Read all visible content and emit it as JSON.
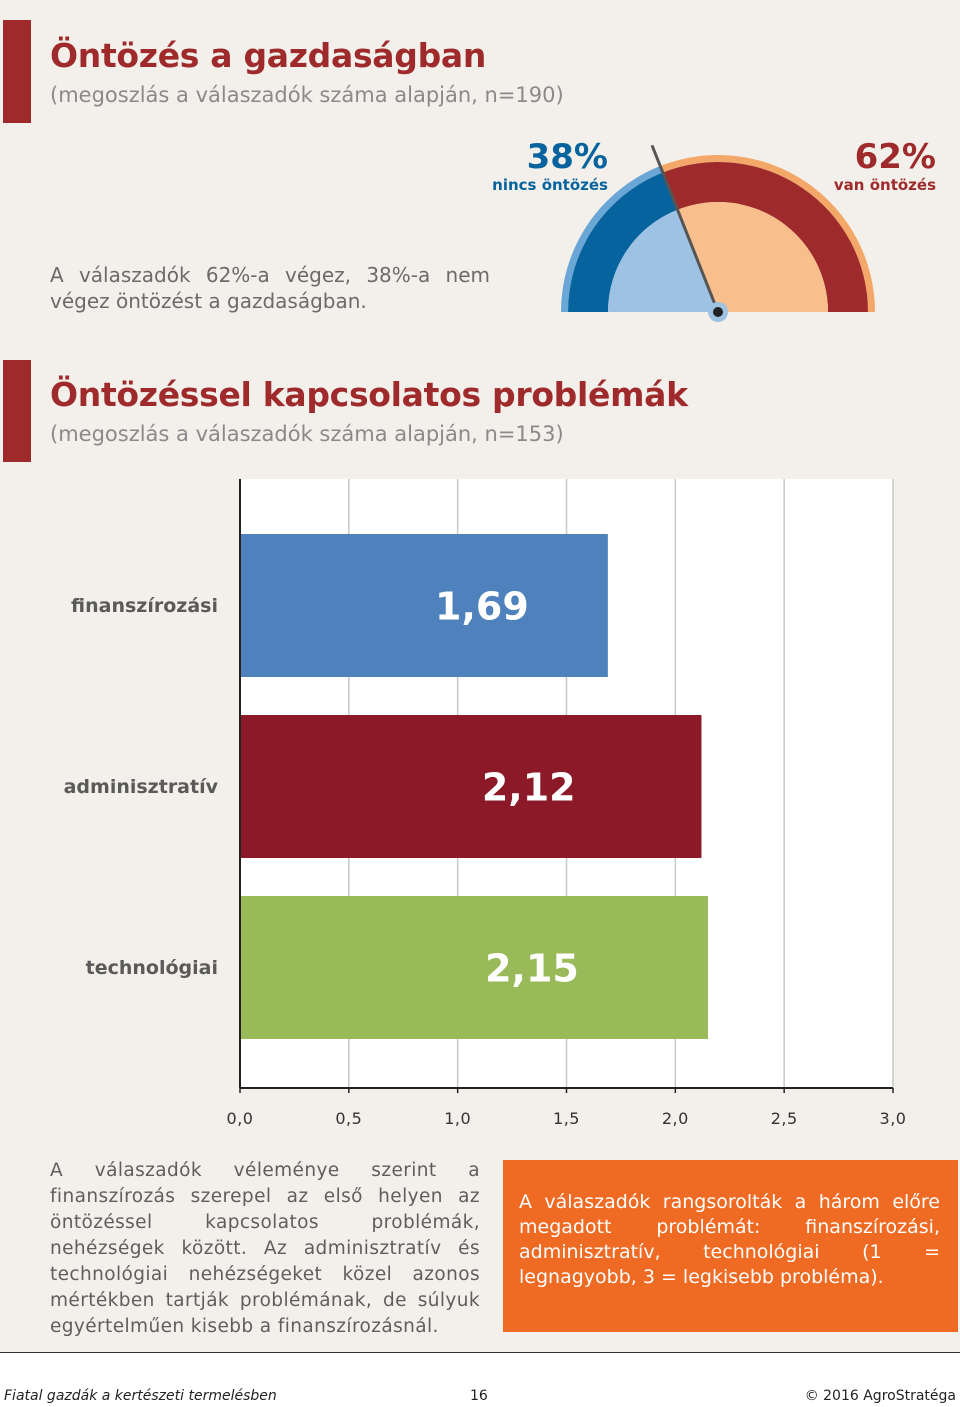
{
  "section1": {
    "title": "Öntözés a gazdaságban",
    "subtitle": "(megoszlás a válaszadók száma alapján, n=190)",
    "intro": "A válaszadók 62%-a végez, 38%-a nem végez öntözést a gazdaságban."
  },
  "gauge": {
    "no_irrigation": {
      "pct": "38%",
      "label": "nincs öntözés",
      "value": 38,
      "color": "#06639d"
    },
    "irrigation": {
      "pct": "62%",
      "label": "van öntözés",
      "value": 62,
      "color": "#9e2a2b"
    },
    "inner_blue": "#9dc2e4",
    "inner_peach": "#f8be8c"
  },
  "section2": {
    "title": "Öntözéssel kapcsolatos problémák",
    "subtitle": "(megoszlás a válaszadók száma alapján, n=153)"
  },
  "chart_data": {
    "type": "bar",
    "orientation": "horizontal",
    "categories": [
      "finanszírozási",
      "adminisztratív",
      "technológiai"
    ],
    "values": [
      1.69,
      2.12,
      2.15
    ],
    "value_labels": [
      "1,69",
      "2,12",
      "2,15"
    ],
    "colors": [
      "#4f81bd",
      "#8b1927",
      "#9aba59"
    ],
    "xlim": [
      0,
      3
    ],
    "xticks": [
      0,
      0.5,
      1.0,
      1.5,
      2.0,
      2.5,
      3.0
    ],
    "xtick_labels": [
      "0,0",
      "0,5",
      "1,0",
      "1,5",
      "2,0",
      "2,5",
      "3,0"
    ],
    "grid": true
  },
  "texts": {
    "left": "A válaszadók véleménye szerint a finanszírozás szerepel az első helyen az öntözéssel kapcsolatos problémák, nehézségek között. Az adminisztratív és technológiai nehézségeket közel azonos mértékben tartják problémának, de súlyuk egyértelműen kisebb a finanszírozásnál.",
    "box": "A válaszadók rangsorolták a három előre megadott problémát: finanszírozási, adminisztratív, technológiai (1 = legnagyobb, 3 = legkisebb probléma).",
    "box_color": "#ef6a22"
  },
  "footer": {
    "left": "Fiatal gazdák a kertészeti termelésben",
    "page": "16",
    "right": "© 2016 AgroStratéga"
  }
}
